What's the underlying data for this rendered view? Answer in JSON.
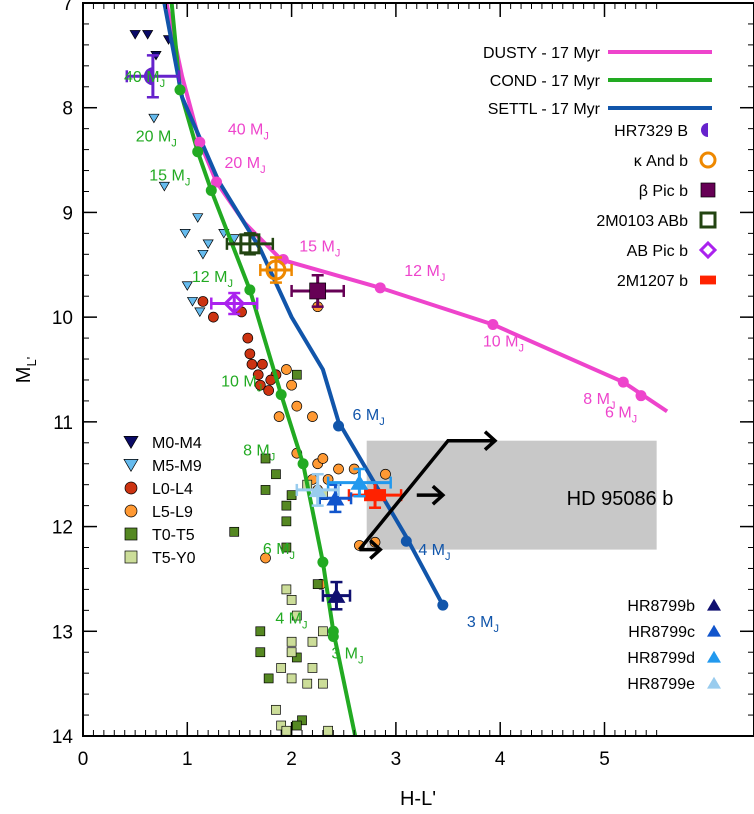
{
  "chart_data": {
    "type": "scatter",
    "xlabel": "H-L'",
    "ylabel": "M",
    "ylabel_sub": "L'",
    "xlim": [
      0,
      5.5
    ],
    "ylim": [
      14,
      7
    ],
    "x_ticks": [
      "0",
      "1",
      "2",
      "3",
      "4",
      "5"
    ],
    "y_ticks": [
      "7",
      "8",
      "9",
      "10",
      "11",
      "12",
      "13",
      "14"
    ],
    "colors": {
      "dusty": "#ee44cc",
      "cond": "#22aa22",
      "settl": "#1155aa",
      "m0m4": "#0a0a66",
      "m5m9": "#66bbee",
      "l0l4": "#cc3311",
      "l5l9": "#ff9933",
      "t0t5": "#558822",
      "t5y0": "#ccdd99",
      "hr7329": "#6622cc",
      "kandb": "#ee8800",
      "betapic": "#660055",
      "abb": "#224411",
      "abpic": "#aa22ee",
      "m1207": "#ff2200",
      "hr8799b": "#101070",
      "hr8799c": "#1155cc",
      "hr8799d": "#2299ee",
      "hr8799e": "#99ccee"
    },
    "models": [
      {
        "name": "DUSTY - 17 Myr",
        "color": "#ee44cc",
        "x": [
          0.8,
          0.95,
          1.12,
          1.28,
          1.55,
          1.9,
          2.85,
          3.93,
          5.18,
          5.6
        ],
        "y": [
          7.0,
          7.7,
          8.33,
          8.71,
          9.1,
          9.45,
          9.72,
          10.07,
          10.62,
          10.9
        ],
        "markers": [
          {
            "x": 1.12,
            "y": 8.33,
            "label": "40 M",
            "sub": "J"
          },
          {
            "x": 1.28,
            "y": 8.71,
            "label": "20 M",
            "sub": "J"
          },
          {
            "x": 1.92,
            "y": 9.45,
            "label": "15 M",
            "sub": "J"
          },
          {
            "x": 2.85,
            "y": 9.72,
            "label": "12 M",
            "sub": "J"
          },
          {
            "x": 3.93,
            "y": 10.07,
            "label": "10 M",
            "sub": "J"
          },
          {
            "x": 5.18,
            "y": 10.62,
            "label": "8 M",
            "sub": "J"
          },
          {
            "x": 5.35,
            "y": 10.75,
            "label": "6 M",
            "sub": "J"
          }
        ]
      },
      {
        "name": "COND - 17 Myr",
        "color": "#22aa22",
        "x": [
          0.85,
          0.93,
          1.1,
          1.23,
          1.6,
          1.9,
          2.11,
          2.3,
          2.4,
          2.62
        ],
        "y": [
          7.0,
          7.83,
          8.42,
          8.79,
          9.74,
          10.74,
          11.4,
          12.34,
          13.0,
          14.05
        ],
        "markers": [
          {
            "x": 0.93,
            "y": 7.83,
            "label": "40 M",
            "sub": "J"
          },
          {
            "x": 1.1,
            "y": 8.42,
            "label": "20 M",
            "sub": "J"
          },
          {
            "x": 1.23,
            "y": 8.79,
            "label": "15 M",
            "sub": "J"
          },
          {
            "x": 1.6,
            "y": 9.74,
            "label": "12 M",
            "sub": "J"
          },
          {
            "x": 1.9,
            "y": 10.74,
            "label": "10 M",
            "sub": "J"
          },
          {
            "x": 2.11,
            "y": 11.4,
            "label": "8 M",
            "sub": "J"
          },
          {
            "x": 2.3,
            "y": 12.34,
            "label": "6 M",
            "sub": "J"
          },
          {
            "x": 2.4,
            "y": 13.0,
            "label": "4 M",
            "sub": "J"
          },
          {
            "x": 2.4,
            "y": 13.05,
            "label": "3 M",
            "sub": "J"
          }
        ]
      },
      {
        "name": "SETTL - 17 Myr",
        "color": "#1155aa",
        "x": [
          0.78,
          0.95,
          1.3,
          1.7,
          2.0,
          2.3,
          2.45,
          3.1,
          3.45
        ],
        "y": [
          7.0,
          7.9,
          8.7,
          9.35,
          10.0,
          10.5,
          11.0,
          12.1,
          12.75
        ],
        "markers": [
          {
            "x": 2.45,
            "y": 11.04,
            "label": "6 M",
            "sub": "J"
          },
          {
            "x": 3.1,
            "y": 12.14,
            "label": "4 M",
            "sub": "J"
          },
          {
            "x": 3.45,
            "y": 12.75,
            "label": "3 M",
            "sub": "J"
          }
        ]
      }
    ],
    "field_objects": [
      {
        "name": "M0-M4",
        "marker": "triangle-down",
        "color": "#0a0a66",
        "points": [
          [
            0.5,
            7.3
          ],
          [
            0.62,
            7.3
          ],
          [
            0.82,
            7.35
          ],
          [
            0.7,
            7.5
          ]
        ]
      },
      {
        "name": "M5-M9",
        "marker": "triangle-down",
        "color": "#66bbee",
        "points": [
          [
            0.68,
            8.1
          ],
          [
            0.78,
            8.75
          ],
          [
            0.98,
            9.2
          ],
          [
            1.0,
            9.7
          ],
          [
            1.1,
            9.05
          ],
          [
            1.15,
            9.4
          ],
          [
            1.2,
            9.3
          ],
          [
            1.35,
            9.2
          ],
          [
            1.45,
            9.25
          ],
          [
            1.05,
            9.85
          ],
          [
            1.12,
            9.95
          ]
        ]
      },
      {
        "name": "L0-L4",
        "marker": "circle",
        "color": "#cc3311",
        "points": [
          [
            1.15,
            9.85
          ],
          [
            1.25,
            10.0
          ],
          [
            1.52,
            9.95
          ],
          [
            1.58,
            10.2
          ],
          [
            1.6,
            10.35
          ],
          [
            1.62,
            10.45
          ],
          [
            1.72,
            10.45
          ],
          [
            1.68,
            10.55
          ],
          [
            1.85,
            10.55
          ],
          [
            1.7,
            10.65
          ],
          [
            1.8,
            10.6
          ],
          [
            1.78,
            10.7
          ]
        ]
      },
      {
        "name": "L5-L9",
        "marker": "circle",
        "color": "#ff9933",
        "points": [
          [
            1.95,
            10.5
          ],
          [
            2.0,
            10.65
          ],
          [
            2.05,
            10.85
          ],
          [
            2.2,
            10.95
          ],
          [
            2.05,
            11.3
          ],
          [
            2.25,
            11.4
          ],
          [
            2.3,
            11.35
          ],
          [
            2.45,
            11.45
          ],
          [
            2.2,
            11.55
          ],
          [
            2.25,
            11.65
          ],
          [
            2.35,
            11.55
          ],
          [
            2.6,
            11.45
          ],
          [
            2.25,
            9.9
          ],
          [
            1.88,
            10.95
          ],
          [
            1.75,
            12.3
          ],
          [
            2.28,
            12.55
          ],
          [
            2.8,
            12.15
          ],
          [
            2.65,
            12.18
          ],
          [
            2.9,
            11.5
          ]
        ]
      },
      {
        "name": "T0-T5",
        "marker": "square",
        "color": "#558822",
        "points": [
          [
            2.05,
            10.55
          ],
          [
            1.75,
            11.35
          ],
          [
            1.85,
            11.5
          ],
          [
            1.75,
            11.65
          ],
          [
            2.0,
            11.7
          ],
          [
            1.95,
            11.8
          ],
          [
            1.95,
            11.95
          ],
          [
            1.45,
            12.05
          ],
          [
            1.95,
            12.2
          ],
          [
            2.25,
            12.55
          ],
          [
            1.7,
            13.0
          ],
          [
            1.7,
            13.2
          ],
          [
            1.78,
            13.45
          ],
          [
            2.05,
            13.25
          ],
          [
            2.1,
            13.85
          ],
          [
            2.05,
            13.9
          ]
        ]
      },
      {
        "name": "T5-Y0",
        "marker": "square",
        "color": "#ccdd99",
        "points": [
          [
            2.3,
            11.7
          ],
          [
            2.15,
            11.6
          ],
          [
            1.95,
            12.6
          ],
          [
            2.0,
            12.7
          ],
          [
            2.05,
            12.85
          ],
          [
            2.0,
            13.1
          ],
          [
            2.0,
            13.2
          ],
          [
            1.9,
            13.35
          ],
          [
            2.0,
            13.45
          ],
          [
            2.15,
            13.5
          ],
          [
            2.2,
            13.35
          ],
          [
            2.3,
            13.5
          ],
          [
            2.2,
            13.1
          ],
          [
            2.3,
            13.0
          ],
          [
            1.9,
            13.9
          ],
          [
            1.95,
            13.95
          ],
          [
            2.35,
            13.95
          ],
          [
            1.85,
            13.75
          ]
        ]
      }
    ],
    "companions": [
      {
        "name": "HR7329 B",
        "marker": "halfcircle",
        "color": "#6622cc",
        "x": 0.67,
        "y": 7.7,
        "xerr": 0.25,
        "yerr": 0.2
      },
      {
        "name": "κ And b",
        "marker": "circle-open",
        "color": "#ee8800",
        "x": 1.85,
        "y": 9.55,
        "xerr": 0.15,
        "yerr": 0.12
      },
      {
        "name": "β Pic b",
        "marker": "square",
        "color": "#660055",
        "x": 2.25,
        "y": 9.75,
        "xerr": 0.25,
        "yerr": 0.15
      },
      {
        "name": "2M0103 ABb",
        "marker": "square-open",
        "color": "#224411",
        "x": 1.6,
        "y": 9.3,
        "xerr": 0.22,
        "yerr": 0.1
      },
      {
        "name": "AB Pic b",
        "marker": "diamond-open",
        "color": "#aa22ee",
        "x": 1.45,
        "y": 9.87,
        "xerr": 0.22,
        "yerr": 0.1
      },
      {
        "name": "2M1207 b",
        "marker": "bar",
        "color": "#ff2200",
        "x": 2.8,
        "y": 11.7,
        "xerr": 0.25,
        "yerr": 0.12
      },
      {
        "name": "HR8799b",
        "marker": "triangle-up",
        "color": "#101070",
        "x": 2.43,
        "y": 12.66,
        "xerr": 0.13,
        "yerr": 0.13
      },
      {
        "name": "HR8799c",
        "marker": "triangle-up",
        "color": "#1155cc",
        "x": 2.42,
        "y": 11.73,
        "xerr": 0.15,
        "yerr": 0.13
      },
      {
        "name": "HR8799d",
        "marker": "triangle-up",
        "color": "#2299ee",
        "x": 2.65,
        "y": 11.58,
        "xerr": 0.3,
        "yerr": 0.13
      },
      {
        "name": "HR8799e",
        "marker": "triangle-up",
        "color": "#99ccee",
        "x": 2.25,
        "y": 11.65,
        "xerr": 0.2,
        "yerr": 0.15
      }
    ],
    "region": {
      "label": "HD 95086 b",
      "x0": 2.72,
      "x1": 5.5,
      "y0": 11.18,
      "y1": 12.22
    },
    "arrows": [
      {
        "x_start": 2.65,
        "y_start": 12.22,
        "x_end": 3.5,
        "y_end": 11.18
      },
      {
        "x_start": 3.5,
        "y_start": 11.18,
        "x_end": 3.95,
        "y_end": 11.18
      },
      {
        "x_start": 2.65,
        "y_start": 12.22,
        "x_end": 2.85,
        "y_end": 12.22
      },
      {
        "x_start": 3.2,
        "y_start": 11.7,
        "x_end": 3.45,
        "y_end": 11.7
      }
    ],
    "legend_models": [
      "DUSTY - 17 Myr",
      "COND - 17 Myr",
      "SETTL - 17 Myr"
    ],
    "legend_companions": [
      "HR7329 B",
      "κ And b",
      "β Pic b",
      "2M0103 ABb",
      "AB Pic b",
      "2M1207 b"
    ],
    "legend_field": [
      "M0-M4",
      "M5-M9",
      "L0-L4",
      "L5-L9",
      "T0-T5",
      "T5-Y0"
    ],
    "legend_hr8799": [
      "HR8799b",
      "HR8799c",
      "HR8799d",
      "HR8799e"
    ]
  }
}
